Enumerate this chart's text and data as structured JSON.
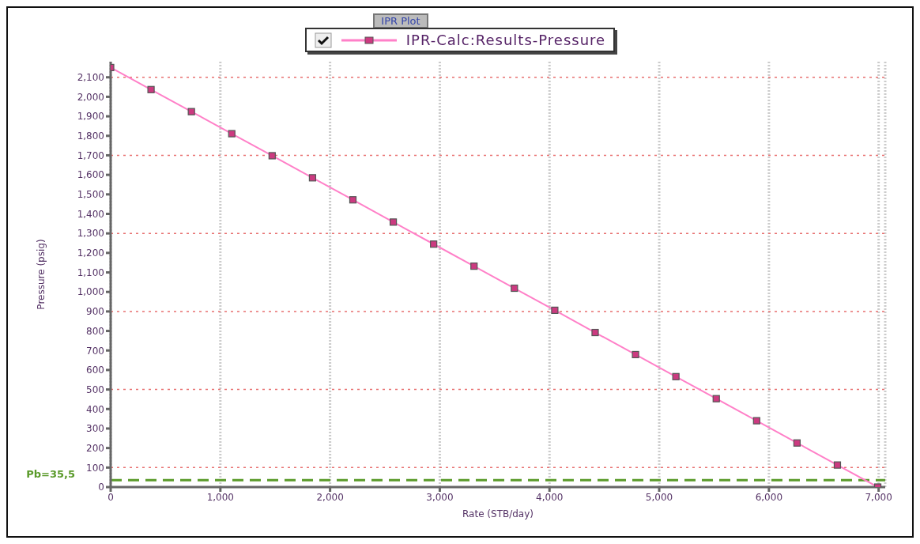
{
  "chart_data": {
    "type": "line",
    "title": "IPR Plot",
    "xlabel": "Rate  (STB/day)",
    "ylabel": "Pressure  (psig)",
    "x": [
      0,
      368,
      736,
      1104,
      1472,
      1840,
      2208,
      2576,
      2944,
      3312,
      3680,
      4048,
      4416,
      4784,
      5152,
      5520,
      5888,
      6256,
      6624,
      6992
    ],
    "series": [
      {
        "name": "IPR-Calc:Results-Pressure",
        "color": "#ff80c8",
        "values": [
          2150,
          2037,
          1924,
          1811,
          1698,
          1585,
          1472,
          1358,
          1245,
          1132,
          1019,
          906,
          792,
          679,
          566,
          453,
          340,
          226,
          113,
          0
        ]
      }
    ],
    "xlim": [
      0,
      7060
    ],
    "ylim": [
      0,
      2180
    ],
    "xticks": [
      0,
      {
        "value": 1000,
        "label": "1,000"
      },
      {
        "value": 2000,
        "label": "2,000"
      },
      {
        "value": 3000,
        "label": "3,000"
      },
      {
        "value": 4000,
        "label": "4,000"
      },
      {
        "value": 5000,
        "label": "5,000"
      },
      {
        "value": 6000,
        "label": "6,000"
      },
      {
        "value": 7000,
        "label": "7,000"
      }
    ],
    "yticks": [
      0,
      100,
      200,
      300,
      400,
      500,
      600,
      700,
      800,
      900,
      {
        "value": 1000,
        "label": "1,000"
      },
      {
        "value": 1100,
        "label": "1,100"
      },
      {
        "value": 1200,
        "label": "1,200"
      },
      {
        "value": 1300,
        "label": "1,300"
      },
      {
        "value": 1400,
        "label": "1,400"
      },
      {
        "value": 1500,
        "label": "1,500"
      },
      {
        "value": 1600,
        "label": "1,600"
      },
      {
        "value": 1700,
        "label": "1,700"
      },
      {
        "value": 1800,
        "label": "1,800"
      },
      {
        "value": 1900,
        "label": "1,900"
      },
      {
        "value": 2000,
        "label": "2,000"
      },
      {
        "value": 2100,
        "label": "2,100"
      }
    ],
    "ref_lines": [
      {
        "axis": "y",
        "value": 100,
        "color": "#e87070",
        "line_style": "dotted"
      },
      {
        "axis": "y",
        "value": 500,
        "color": "#e87070",
        "line_style": "dotted"
      },
      {
        "axis": "y",
        "value": 900,
        "color": "#e87070",
        "line_style": "dotted"
      },
      {
        "axis": "y",
        "value": 1300,
        "color": "#e87070",
        "line_style": "dotted"
      },
      {
        "axis": "y",
        "value": 1700,
        "color": "#e87070",
        "line_style": "dotted"
      },
      {
        "axis": "y",
        "value": 2100,
        "color": "#e87070",
        "line_style": "dotted"
      },
      {
        "axis": "y",
        "value": 35.5,
        "label": "Pb=35,5",
        "color": "#5a9a2a",
        "line_style": "dashed"
      }
    ],
    "grid": "x",
    "legend": "top",
    "marker": "square",
    "line_style": "solid"
  }
}
